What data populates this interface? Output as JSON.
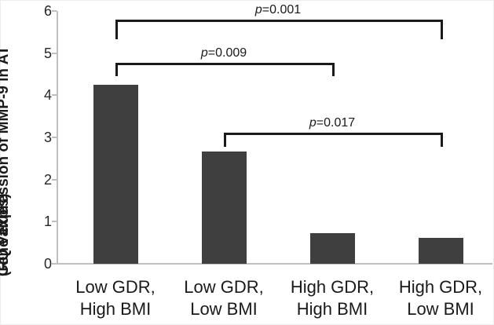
{
  "chart_data": {
    "type": "bar",
    "title": "",
    "ylabel_line1": "Gene expression of MMP-9 in AT",
    "ylabel_line2": "(RQ values)",
    "categories": [
      [
        "Low GDR,",
        "High BMI"
      ],
      [
        "Low GDR,",
        "Low BMI"
      ],
      [
        "High GDR,",
        "High BMI"
      ],
      [
        "High GDR,",
        "Low BMI"
      ]
    ],
    "values": [
      4.25,
      2.67,
      0.73,
      0.62
    ],
    "ylim": [
      0,
      6
    ],
    "yticks": [
      "0",
      "1",
      "2",
      "3",
      "4",
      "5",
      "6"
    ],
    "grid": "off",
    "legend": "none",
    "bar_color": "#3f3f3f",
    "axis_color": "#bfbfbf",
    "significance_brackets": [
      {
        "label": "p=0.001",
        "from": 0,
        "to": 3,
        "level": 5.8,
        "drop_to": 5.33
      },
      {
        "label": "p=0.009",
        "from": 0,
        "to": 2,
        "level": 4.77,
        "drop_to": 4.45
      },
      {
        "label": "p=0.017",
        "from": 1,
        "to": 3,
        "level": 3.12,
        "drop_to": 2.77
      }
    ]
  }
}
